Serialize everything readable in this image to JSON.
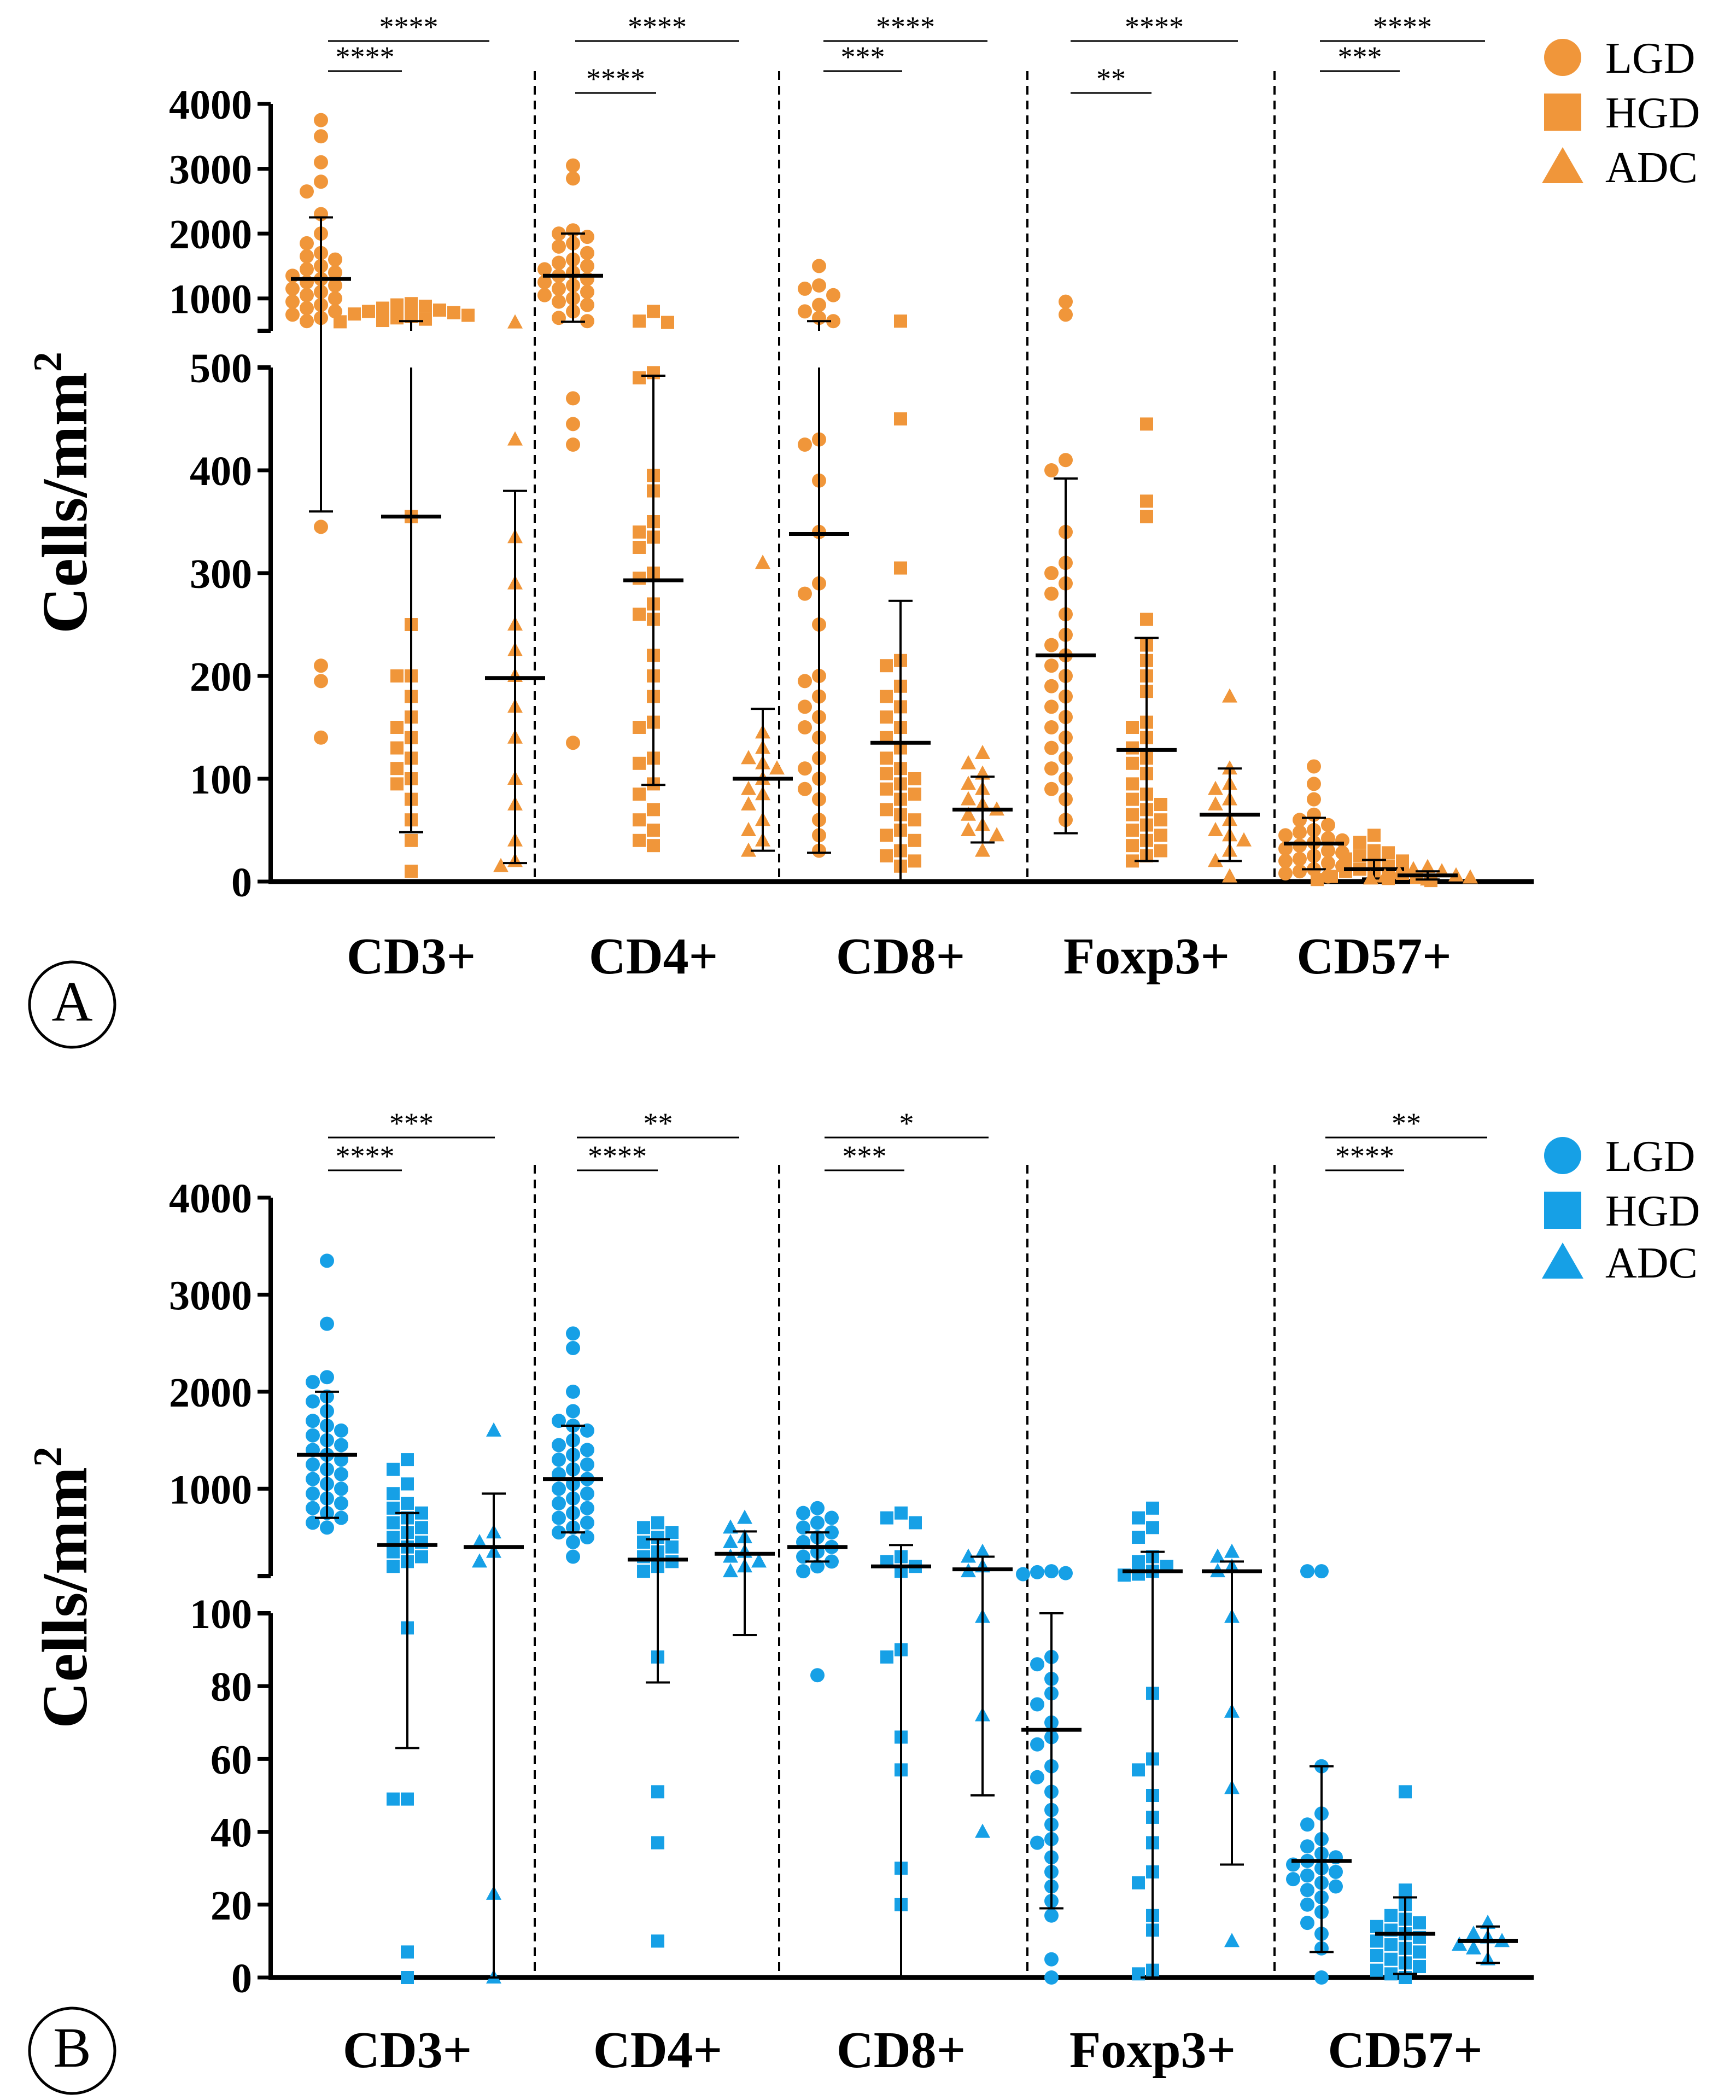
{
  "chart_data": [
    {
      "panel": "A",
      "type": "scatter",
      "subtype": "dot-plot with mean and SD, broken y-axis",
      "ylabel": "Cells/mm",
      "ylabel_sup": "2",
      "color": "#F0963A",
      "groups": [
        "CD3+",
        "CD4+",
        "CD8+",
        "Foxp3+",
        "CD57+"
      ],
      "series_names": [
        "LGD",
        "HGD",
        "ADC"
      ],
      "legend": [
        {
          "name": "LGD",
          "marker": "circle-icon"
        },
        {
          "name": "HGD",
          "marker": "square-icon"
        },
        {
          "name": "ADC",
          "marker": "triangle-icon"
        }
      ],
      "lower_axis": {
        "min": 0,
        "max": 500,
        "ticks": [
          0,
          100,
          200,
          300,
          400,
          500
        ]
      },
      "upper_axis": {
        "min": 500,
        "max": 4000,
        "ticks": [
          1000,
          2000,
          3000,
          4000
        ]
      },
      "significance": [
        {
          "group": 0,
          "from": 0,
          "to": 1,
          "label": "****"
        },
        {
          "group": 0,
          "from": 0,
          "to": 2,
          "label": "****"
        },
        {
          "group": 1,
          "from": 0,
          "to": 1,
          "label": "****"
        },
        {
          "group": 1,
          "from": 0,
          "to": 2,
          "label": "****"
        },
        {
          "group": 2,
          "from": 0,
          "to": 1,
          "label": "***"
        },
        {
          "group": 2,
          "from": 0,
          "to": 2,
          "label": "****"
        },
        {
          "group": 3,
          "from": 0,
          "to": 1,
          "label": "**"
        },
        {
          "group": 3,
          "from": 0,
          "to": 2,
          "label": "****"
        },
        {
          "group": 4,
          "from": 0,
          "to": 1,
          "label": "***"
        },
        {
          "group": 4,
          "from": 0,
          "to": 2,
          "label": "****"
        }
      ],
      "data": [
        [
          {
            "mean": 1300,
            "lo": 360,
            "hi": 2250,
            "points": [
              3750,
              3500,
              3100,
              2800,
              2650,
              2300,
              2000,
              1850,
              1700,
              1650,
              1600,
              1500,
              1450,
              1400,
              1350,
              1300,
              1250,
              1200,
              1150,
              1100,
              1050,
              1000,
              950,
              900,
              850,
              800,
              750,
              700,
              650,
              345,
              210,
              195,
              140
            ]
          },
          {
            "mean": 355,
            "lo": 48,
            "hi": 650,
            "points": [
              920,
              900,
              880,
              850,
              820,
              800,
              780,
              760,
              740,
              720,
              700,
              680,
              660,
              640,
              355,
              250,
              200,
              200,
              180,
              160,
              150,
              140,
              130,
              120,
              110,
              100,
              95,
              80,
              60,
              40,
              10
            ]
          },
          {
            "mean": 198,
            "lo": 18,
            "hi": 380,
            "points": [
              630,
              430,
              335,
              290,
              250,
              225,
              200,
              170,
              140,
              100,
              75,
              40,
              20,
              15
            ]
          }
        ],
        [
          {
            "mean": 1350,
            "lo": 640,
            "hi": 2000,
            "points": [
              3050,
              2850,
              2050,
              2000,
              1950,
              1850,
              1800,
              1700,
              1600,
              1550,
              1500,
              1450,
              1400,
              1350,
              1300,
              1250,
              1200,
              1150,
              1100,
              1050,
              1000,
              950,
              900,
              800,
              700,
              650,
              470,
              445,
              425,
              135
            ]
          },
          {
            "mean": 293,
            "lo": 94,
            "hi": 492,
            "points": [
              800,
              650,
              630,
              495,
              490,
              395,
              380,
              350,
              340,
              335,
              325,
              300,
              295,
              270,
              260,
              255,
              220,
              200,
              180,
              155,
              150,
              120,
              115,
              95,
              85,
              70,
              60,
              50,
              40,
              35
            ]
          },
          {
            "mean": 100,
            "lo": 30,
            "hi": 168,
            "points": [
              310,
              145,
              130,
              120,
              115,
              110,
              100,
              90,
              85,
              75,
              60,
              50,
              40,
              30
            ]
          }
        ],
        [
          {
            "mean": 338,
            "lo": 28,
            "hi": 650,
            "points": [
              1500,
              1200,
              1150,
              1050,
              900,
              800,
              700,
              650,
              430,
              425,
              390,
              340,
              290,
              280,
              250,
              200,
              195,
              180,
              170,
              160,
              150,
              140,
              120,
              110,
              100,
              90,
              80,
              60,
              45,
              30
            ]
          },
          {
            "mean": 135,
            "lo": 0,
            "hi": 273,
            "points": [
              650,
              450,
              305,
              215,
              210,
              190,
              180,
              170,
              160,
              150,
              140,
              130,
              120,
              110,
              105,
              100,
              95,
              90,
              85,
              80,
              70,
              65,
              60,
              50,
              45,
              40,
              30,
              25,
              20,
              15
            ]
          },
          {
            "mean": 70,
            "lo": 38,
            "hi": 102,
            "points": [
              125,
              115,
              105,
              95,
              90,
              80,
              75,
              70,
              65,
              55,
              50,
              45,
              30
            ]
          }
        ],
        [
          {
            "mean": 220,
            "lo": 47,
            "hi": 392,
            "points": [
              950,
              750,
              410,
              400,
              340,
              310,
              300,
              290,
              280,
              260,
              240,
              230,
              220,
              210,
              200,
              190,
              180,
              170,
              160,
              150,
              140,
              130,
              120,
              110,
              100,
              90,
              80,
              60
            ]
          },
          {
            "mean": 128,
            "lo": 20,
            "hi": 237,
            "points": [
              445,
              370,
              355,
              255,
              230,
              215,
              200,
              185,
              155,
              150,
              140,
              130,
              120,
              115,
              105,
              95,
              85,
              80,
              75,
              70,
              65,
              60,
              55,
              50,
              45,
              40,
              35,
              30,
              25,
              20
            ]
          },
          {
            "mean": 65,
            "lo": 20,
            "hi": 110,
            "points": [
              180,
              110,
              95,
              90,
              80,
              75,
              60,
              50,
              45,
              40,
              30,
              20,
              5
            ]
          }
        ],
        [
          {
            "mean": 37,
            "lo": 12,
            "hi": 62,
            "points": [
              112,
              95,
              80,
              65,
              60,
              55,
              50,
              48,
              45,
              42,
              40,
              38,
              35,
              32,
              30,
              28,
              25,
              22,
              20,
              18,
              15,
              12,
              10,
              8,
              5
            ]
          },
          {
            "mean": 12,
            "lo": 3,
            "hi": 21,
            "points": [
              45,
              38,
              30,
              28,
              25,
              22,
              20,
              18,
              15,
              12,
              10,
              8,
              6,
              5,
              4,
              3,
              2,
              1
            ]
          },
          {
            "mean": 6,
            "lo": 2,
            "hi": 10,
            "points": [
              14,
              12,
              10,
              8,
              6,
              5,
              4,
              3,
              2
            ]
          }
        ]
      ]
    },
    {
      "panel": "B",
      "type": "scatter",
      "subtype": "dot-plot with mean and SD, broken y-axis",
      "ylabel": "Cells/mm",
      "ylabel_sup": "2",
      "color": "#16A0E6",
      "groups": [
        "CD3+",
        "CD4+",
        "CD8+",
        "Foxp3+",
        "CD57+"
      ],
      "series_names": [
        "LGD",
        "HGD",
        "ADC"
      ],
      "legend": [
        {
          "name": "LGD",
          "marker": "circle-icon"
        },
        {
          "name": "HGD",
          "marker": "square-icon"
        },
        {
          "name": "ADC",
          "marker": "triangle-icon"
        }
      ],
      "lower_axis": {
        "min": 0,
        "max": 100,
        "ticks": [
          0,
          20,
          40,
          60,
          80,
          100
        ]
      },
      "upper_axis": {
        "min": 100,
        "max": 4000,
        "ticks": [
          1000,
          2000,
          3000,
          4000
        ]
      },
      "significance": [
        {
          "group": 0,
          "from": 0,
          "to": 1,
          "label": "****"
        },
        {
          "group": 0,
          "from": 0,
          "to": 2,
          "label": "***"
        },
        {
          "group": 1,
          "from": 0,
          "to": 1,
          "label": "****"
        },
        {
          "group": 1,
          "from": 0,
          "to": 2,
          "label": "**"
        },
        {
          "group": 2,
          "from": 0,
          "to": 1,
          "label": "***"
        },
        {
          "group": 2,
          "from": 0,
          "to": 2,
          "label": "*"
        },
        {
          "group": 4,
          "from": 0,
          "to": 1,
          "label": "****"
        },
        {
          "group": 4,
          "from": 0,
          "to": 2,
          "label": "**"
        }
      ],
      "data": [
        [
          {
            "mean": 1350,
            "lo": 700,
            "hi": 2000,
            "points": [
              3350,
              2700,
              2150,
              2100,
              1950,
              1900,
              1800,
              1700,
              1650,
              1600,
              1550,
              1500,
              1450,
              1400,
              1350,
              1300,
              1250,
              1200,
              1150,
              1100,
              1050,
              1000,
              950,
              900,
              850,
              800,
              750,
              700,
              650,
              600
            ]
          },
          {
            "mean": 420,
            "lo": 63,
            "hi": 750,
            "points": [
              1300,
              1200,
              1050,
              950,
              850,
              800,
              750,
              700,
              650,
              600,
              550,
              500,
              450,
              400,
              350,
              300,
              250,
              200,
              96,
              49,
              49,
              7,
              0
            ]
          },
          {
            "mean": 400,
            "lo": 0,
            "hi": 950,
            "points": [
              1600,
              550,
              450,
              350,
              250,
              23,
              0
            ]
          }
        ],
        [
          {
            "mean": 1100,
            "lo": 550,
            "hi": 1650,
            "points": [
              2600,
              2450,
              2000,
              1800,
              1700,
              1650,
              1600,
              1500,
              1450,
              1400,
              1350,
              1300,
              1250,
              1200,
              1150,
              1100,
              1050,
              1000,
              950,
              900,
              850,
              800,
              750,
              700,
              650,
              600,
              550,
              500,
              450,
              300
            ]
          },
          {
            "mean": 270,
            "lo": 81,
            "hi": 480,
            "points": [
              650,
              600,
              550,
              500,
              450,
              400,
              350,
              300,
              250,
              200,
              150,
              88,
              51,
              37,
              10
            ]
          },
          {
            "mean": 330,
            "lo": 94,
            "hi": 560,
            "points": [
              700,
              600,
              500,
              450,
              350,
              300,
              250,
              200,
              150
            ]
          }
        ],
        [
          {
            "mean": 400,
            "lo": 250,
            "hi": 550,
            "points": [
              800,
              750,
              700,
              650,
              600,
              550,
              500,
              450,
              400,
              350,
              300,
              250,
              200,
              150,
              83
            ]
          },
          {
            "mean": 200,
            "lo": 0,
            "hi": 420,
            "points": [
              750,
              700,
              650,
              300,
              250,
              200,
              150,
              90,
              88,
              66,
              57,
              30,
              20
            ]
          },
          {
            "mean": 170,
            "lo": 50,
            "hi": 300,
            "points": [
              350,
              300,
              200,
              150,
              99,
              72,
              40
            ]
          }
        ],
        [
          {
            "mean": 68,
            "lo": 19,
            "hi": 100,
            "points": [
              150,
              140,
              130,
              120,
              88,
              86,
              82,
              78,
              75,
              70,
              66,
              64,
              58,
              55,
              51,
              46,
              42,
              38,
              37,
              33,
              29,
              25,
              21,
              17,
              5,
              0
            ]
          },
          {
            "mean": 150,
            "lo": 0,
            "hi": 350,
            "points": [
              800,
              700,
              600,
              500,
              300,
              250,
              200,
              150,
              120,
              110,
              78,
              60,
              57,
              50,
              44,
              37,
              29,
              26,
              17,
              13,
              2,
              1
            ]
          },
          {
            "mean": 150,
            "lo": 31,
            "hi": 250,
            "points": [
              350,
              300,
              200,
              150,
              99,
              73,
              52,
              10
            ]
          }
        ],
        [
          {
            "mean": 32,
            "lo": 7,
            "hi": 58,
            "points": [
              150,
              150,
              58,
              45,
              42,
              38,
              36,
              34,
              33,
              32,
              31,
              30,
              29,
              28,
              27,
              26,
              25,
              24,
              22,
              20,
              18,
              15,
              12,
              8,
              0
            ]
          },
          {
            "mean": 12,
            "lo": 1,
            "hi": 22,
            "points": [
              51,
              24,
              20,
              17,
              16,
              15,
              14,
              13,
              12,
              11,
              10,
              9,
              8,
              7,
              6,
              5,
              4,
              3,
              2,
              1,
              0
            ]
          },
          {
            "mean": 10,
            "lo": 4,
            "hi": 14,
            "points": [
              15,
              12,
              11,
              10,
              9,
              8,
              5
            ]
          }
        ]
      ]
    }
  ],
  "panel_labels": {
    "a": "A",
    "b": "B"
  }
}
